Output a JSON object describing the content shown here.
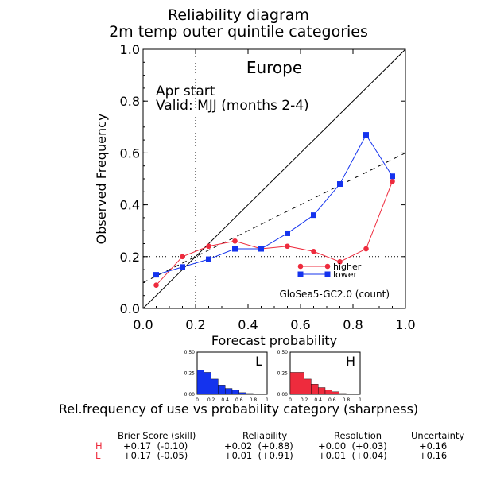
{
  "page": {
    "title_line1": "Reliability diagram",
    "title_line2": "2m temp outer quintile categories"
  },
  "chart_data": [
    {
      "type": "line",
      "title": "Reliability diagram",
      "subtitle": "2m temp outer quintile categories",
      "region": "Europe",
      "annotation_line1": "Apr start",
      "annotation_line2": "Valid: MJJ (months 2-4)",
      "model_label": "GloSea5-GC2.0 (count)",
      "xlabel": "Forecast probability",
      "ylabel": "Observed Frequency",
      "xlim": [
        0,
        1
      ],
      "ylim": [
        0,
        1
      ],
      "xticks": [
        "0.0",
        "0.2",
        "0.4",
        "0.6",
        "0.8",
        "1.0"
      ],
      "yticks": [
        "0.0",
        "0.2",
        "0.4",
        "0.6",
        "0.8",
        "1.0"
      ],
      "climatology": 0.2,
      "reference_lines": [
        "perfect reliability diagonal",
        "dashed no-skill line",
        "dotted climatology lines at 0.2"
      ],
      "legend_position": "inside lower-right",
      "series": [
        {
          "name": "higher",
          "color": "#ee2b3d",
          "marker": "circle",
          "x": [
            0.05,
            0.15,
            0.25,
            0.35,
            0.45,
            0.55,
            0.65,
            0.75,
            0.85,
            0.95
          ],
          "y": [
            0.09,
            0.2,
            0.24,
            0.26,
            0.23,
            0.24,
            0.22,
            0.18,
            0.23,
            0.49
          ]
        },
        {
          "name": "lower",
          "color": "#1433ee",
          "marker": "square",
          "x": [
            0.05,
            0.15,
            0.25,
            0.35,
            0.45,
            0.55,
            0.65,
            0.75,
            0.85,
            0.95
          ],
          "y": [
            0.13,
            0.16,
            0.19,
            0.23,
            0.23,
            0.29,
            0.36,
            0.48,
            0.67,
            0.51
          ]
        }
      ]
    },
    {
      "type": "bar",
      "label": "L",
      "color": "#1433ee",
      "ylim": [
        0,
        0.5
      ],
      "yticks": [
        "0.50",
        "0.25",
        "0.00"
      ],
      "xticks": [
        "0",
        "0.2",
        "0.4",
        "0.6",
        "0.8",
        "1"
      ],
      "categories": [
        0.05,
        0.15,
        0.25,
        0.35,
        0.45,
        0.55,
        0.65,
        0.75,
        0.85,
        0.95
      ],
      "values": [
        0.29,
        0.26,
        0.18,
        0.11,
        0.07,
        0.05,
        0.02,
        0.01,
        0.005,
        0.003
      ]
    },
    {
      "type": "bar",
      "label": "H",
      "color": "#ee2b3d",
      "ylim": [
        0,
        0.5
      ],
      "yticks": [
        "0.50",
        "0.25",
        "0.00"
      ],
      "xticks": [
        "0",
        "0.2",
        "0.4",
        "0.6",
        "0.8",
        "1"
      ],
      "categories": [
        0.05,
        0.15,
        0.25,
        0.35,
        0.45,
        0.55,
        0.65,
        0.75,
        0.85,
        0.95
      ],
      "values": [
        0.26,
        0.26,
        0.18,
        0.12,
        0.08,
        0.05,
        0.03,
        0.01,
        0.005,
        0.002
      ]
    }
  ],
  "sharpness_caption": "Rel.frequency of use vs probability category (sharpness)",
  "stats": {
    "headers": [
      "Brier Score (skill)",
      "Reliability",
      "Resolution",
      "Uncertainty"
    ],
    "rows": [
      {
        "label": "H",
        "color": "#ee2b3d",
        "values": [
          "+0.17  (-0.10)",
          "+0.02  (+0.88)",
          "+0.00  (+0.03)",
          "+0.16"
        ]
      },
      {
        "label": "L",
        "color": "#ee2b3d",
        "values": [
          "+0.17  (-0.05)",
          "+0.01  (+0.91)",
          "+0.01  (+0.04)",
          "+0.16"
        ]
      }
    ]
  }
}
